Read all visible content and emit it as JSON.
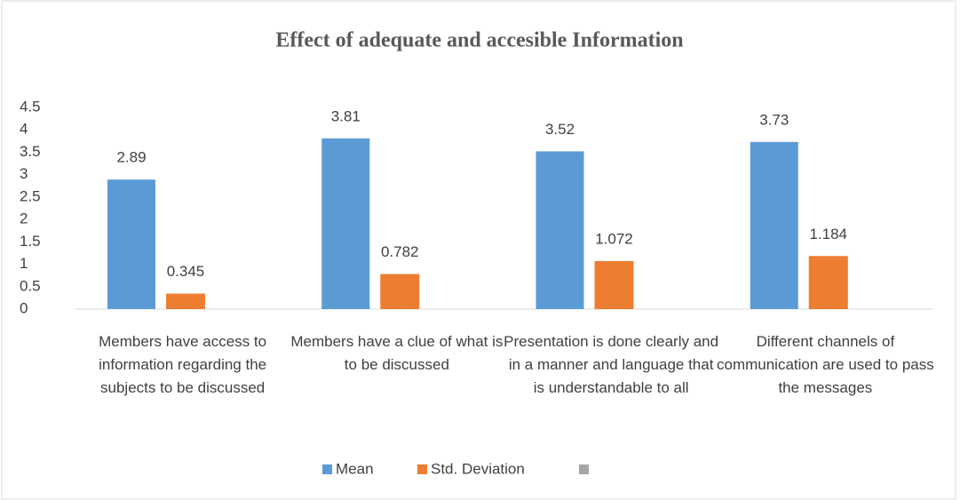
{
  "chart_data": {
    "type": "bar",
    "title": "Effect of adequate and accesible Information",
    "categories": [
      "Members have access to information regarding the subjects to be discussed",
      "Members have a clue of what is to be discussed",
      "Presentation is done clearly and in a manner and language that is understandable to all",
      "Different channels of communication are used to pass the messages"
    ],
    "series": [
      {
        "name": "Mean",
        "color": "#5b9bd5",
        "values": [
          2.89,
          3.81,
          3.52,
          3.73
        ]
      },
      {
        "name": "Std. Deviation",
        "color": "#ed7d31",
        "values": [
          0.345,
          0.782,
          1.072,
          1.184
        ]
      }
    ],
    "ylim": [
      0,
      4.5
    ],
    "yticks": [
      0,
      0.5,
      1,
      1.5,
      2,
      2.5,
      3,
      3.5,
      4,
      4.5
    ],
    "grid": false,
    "legend": "bottom"
  }
}
